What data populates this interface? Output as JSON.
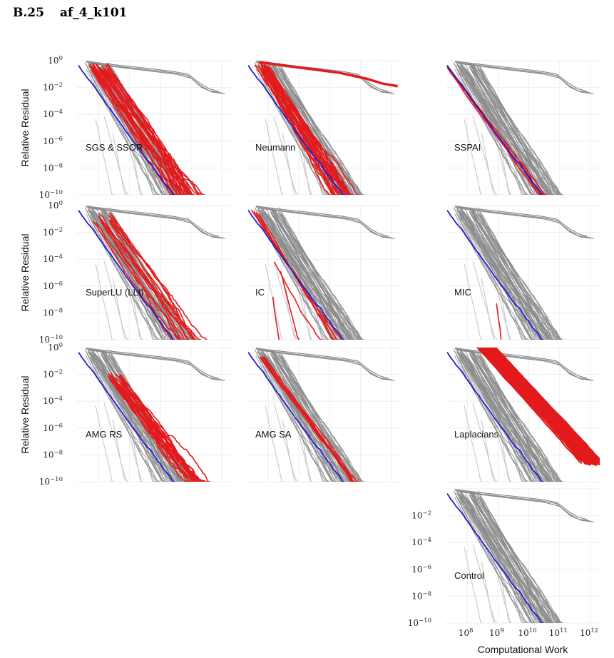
{
  "section": {
    "number": "B.25",
    "name": "af_4_k101"
  },
  "chart_data": {
    "type": "line",
    "y_axis_label": "Relative Residual",
    "x_axis_label": "Computational Work",
    "y_scale": "log",
    "x_scale": "log",
    "ylim": [
      1e-10,
      1
    ],
    "xlim": [
      20000000.0,
      2000000000000.0
    ],
    "y_ticks": [
      {
        "base": "10",
        "exp": "0"
      },
      {
        "base": "10",
        "exp": "−2"
      },
      {
        "base": "10",
        "exp": "−4"
      },
      {
        "base": "10",
        "exp": "−6"
      },
      {
        "base": "10",
        "exp": "−8"
      },
      {
        "base": "10",
        "exp": "−10"
      }
    ],
    "x_ticks": [
      {
        "base": "10",
        "exp": "8"
      },
      {
        "base": "10",
        "exp": "9"
      },
      {
        "base": "10",
        "exp": "10"
      },
      {
        "base": "10",
        "exp": "11"
      },
      {
        "base": "10",
        "exp": "12"
      }
    ],
    "colors": {
      "highlight": "#e31a1c",
      "control": "#1f1fd6",
      "background_dark": "#8a8a8a",
      "background_light": "#c8c8c8",
      "grid": "#ededed"
    },
    "panels": [
      {
        "label": "SGS & SSOR",
        "mode": "sgs"
      },
      {
        "label": "Neumann",
        "mode": "neumann"
      },
      {
        "label": "SSPAI",
        "mode": "sspai"
      },
      {
        "label": "SuperLU (LLt)",
        "mode": "superlu"
      },
      {
        "label": "IC",
        "mode": "ic"
      },
      {
        "label": "MIC",
        "mode": "mic"
      },
      {
        "label": "AMG RS",
        "mode": "amgrs"
      },
      {
        "label": "AMG SA",
        "mode": "amgsa"
      },
      {
        "label": "Laplacians",
        "mode": "laplacians"
      },
      {
        "label": "Control",
        "mode": "control"
      }
    ]
  }
}
